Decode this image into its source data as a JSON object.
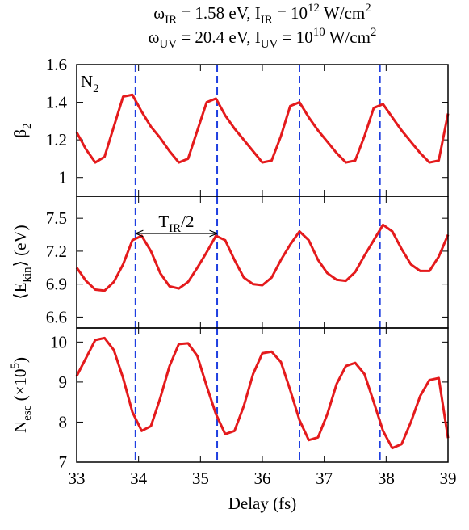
{
  "chart_data": {
    "type": "line",
    "title": [
      [
        {
          "text": "ω"
        },
        {
          "text": "IR",
          "shift": "sub"
        },
        {
          "text": " = 1.58 eV, "
        },
        {
          "text": "I"
        },
        {
          "text": "IR",
          "shift": "sub"
        },
        {
          "text": " = 10"
        },
        {
          "text": "12",
          "shift": "sup"
        },
        {
          "text": " W/cm"
        },
        {
          "text": "2",
          "shift": "sup"
        }
      ],
      [
        {
          "text": "ω"
        },
        {
          "text": "UV",
          "shift": "sub"
        },
        {
          "text": " = 20.4 eV, "
        },
        {
          "text": "I"
        },
        {
          "text": "UV",
          "shift": "sub"
        },
        {
          "text": " = 10"
        },
        {
          "text": "10",
          "shift": "sup"
        },
        {
          "text": " W/cm"
        },
        {
          "text": "2",
          "shift": "sup"
        }
      ]
    ],
    "xlabel": "Delay (fs)",
    "xlim": [
      33,
      39
    ],
    "xticks": [
      33,
      34,
      35,
      36,
      37,
      38,
      39
    ],
    "color": "#e41a1c",
    "vline_color": "#1f3fe0",
    "vlines": [
      33.95,
      35.27,
      36.6,
      37.9
    ],
    "x": [
      33.0,
      33.15,
      33.3,
      33.45,
      33.6,
      33.75,
      33.9,
      34.05,
      34.2,
      34.35,
      34.5,
      34.65,
      34.8,
      34.95,
      35.1,
      35.25,
      35.4,
      35.55,
      35.7,
      35.85,
      36.0,
      36.15,
      36.3,
      36.45,
      36.6,
      36.75,
      36.9,
      37.05,
      37.2,
      37.35,
      37.5,
      37.65,
      37.8,
      37.95,
      38.1,
      38.25,
      38.4,
      38.55,
      38.7,
      38.85,
      39.0
    ],
    "panels": [
      {
        "ylabel": [
          {
            "text": "β"
          },
          {
            "text": "2",
            "shift": "sub"
          }
        ],
        "ylim": [
          0.9,
          1.6
        ],
        "yticks": [
          1,
          1.2,
          1.4,
          1.6
        ],
        "annotation": [
          {
            "text": "N"
          },
          {
            "text": "2",
            "shift": "sub"
          }
        ],
        "series": [
          {
            "values": [
              1.24,
              1.15,
              1.08,
              1.11,
              1.27,
              1.43,
              1.44,
              1.35,
              1.27,
              1.21,
              1.14,
              1.08,
              1.1,
              1.25,
              1.4,
              1.42,
              1.33,
              1.26,
              1.2,
              1.14,
              1.08,
              1.09,
              1.22,
              1.38,
              1.4,
              1.32,
              1.25,
              1.19,
              1.13,
              1.08,
              1.09,
              1.22,
              1.37,
              1.39,
              1.32,
              1.25,
              1.19,
              1.13,
              1.08,
              1.09,
              1.34
            ]
          }
        ]
      },
      {
        "ylabel": [
          {
            "text": "⟨E"
          },
          {
            "text": "kin",
            "shift": "sub"
          },
          {
            "text": "⟩ (eV)"
          }
        ],
        "ylim": [
          6.5,
          7.7
        ],
        "yticks": [
          6.6,
          6.9,
          7.2,
          7.5
        ],
        "annotation": [
          {
            "text": "T"
          },
          {
            "text": "IR",
            "shift": "sub"
          },
          {
            "text": "/2"
          }
        ],
        "series": [
          {
            "values": [
              7.05,
              6.93,
              6.85,
              6.84,
              6.92,
              7.08,
              7.3,
              7.34,
              7.2,
              7.0,
              6.88,
              6.86,
              6.92,
              7.05,
              7.19,
              7.34,
              7.3,
              7.12,
              6.96,
              6.9,
              6.89,
              6.96,
              7.12,
              7.26,
              7.38,
              7.3,
              7.12,
              7.0,
              6.94,
              6.93,
              7.01,
              7.16,
              7.3,
              7.44,
              7.38,
              7.22,
              7.08,
              7.02,
              7.02,
              7.15,
              7.35
            ]
          }
        ]
      },
      {
        "ylabel": [
          {
            "text": "N"
          },
          {
            "text": "esc",
            "shift": "sub"
          },
          {
            "text": " (×10"
          },
          {
            "text": "5",
            "shift": "sup"
          },
          {
            "text": ")"
          }
        ],
        "ylim": [
          7,
          10.35
        ],
        "yticks": [
          7,
          8,
          9,
          10
        ],
        "series": [
          {
            "values": [
              9.15,
              9.6,
              10.05,
              10.1,
              9.8,
              9.1,
              8.25,
              7.78,
              7.9,
              8.6,
              9.4,
              9.95,
              9.97,
              9.65,
              8.9,
              8.2,
              7.7,
              7.78,
              8.4,
              9.2,
              9.72,
              9.76,
              9.5,
              8.8,
              8.05,
              7.55,
              7.62,
              8.2,
              8.95,
              9.4,
              9.48,
              9.2,
              8.5,
              7.78,
              7.35,
              7.45,
              8.0,
              8.65,
              9.05,
              9.1,
              7.6
            ]
          }
        ]
      }
    ]
  }
}
